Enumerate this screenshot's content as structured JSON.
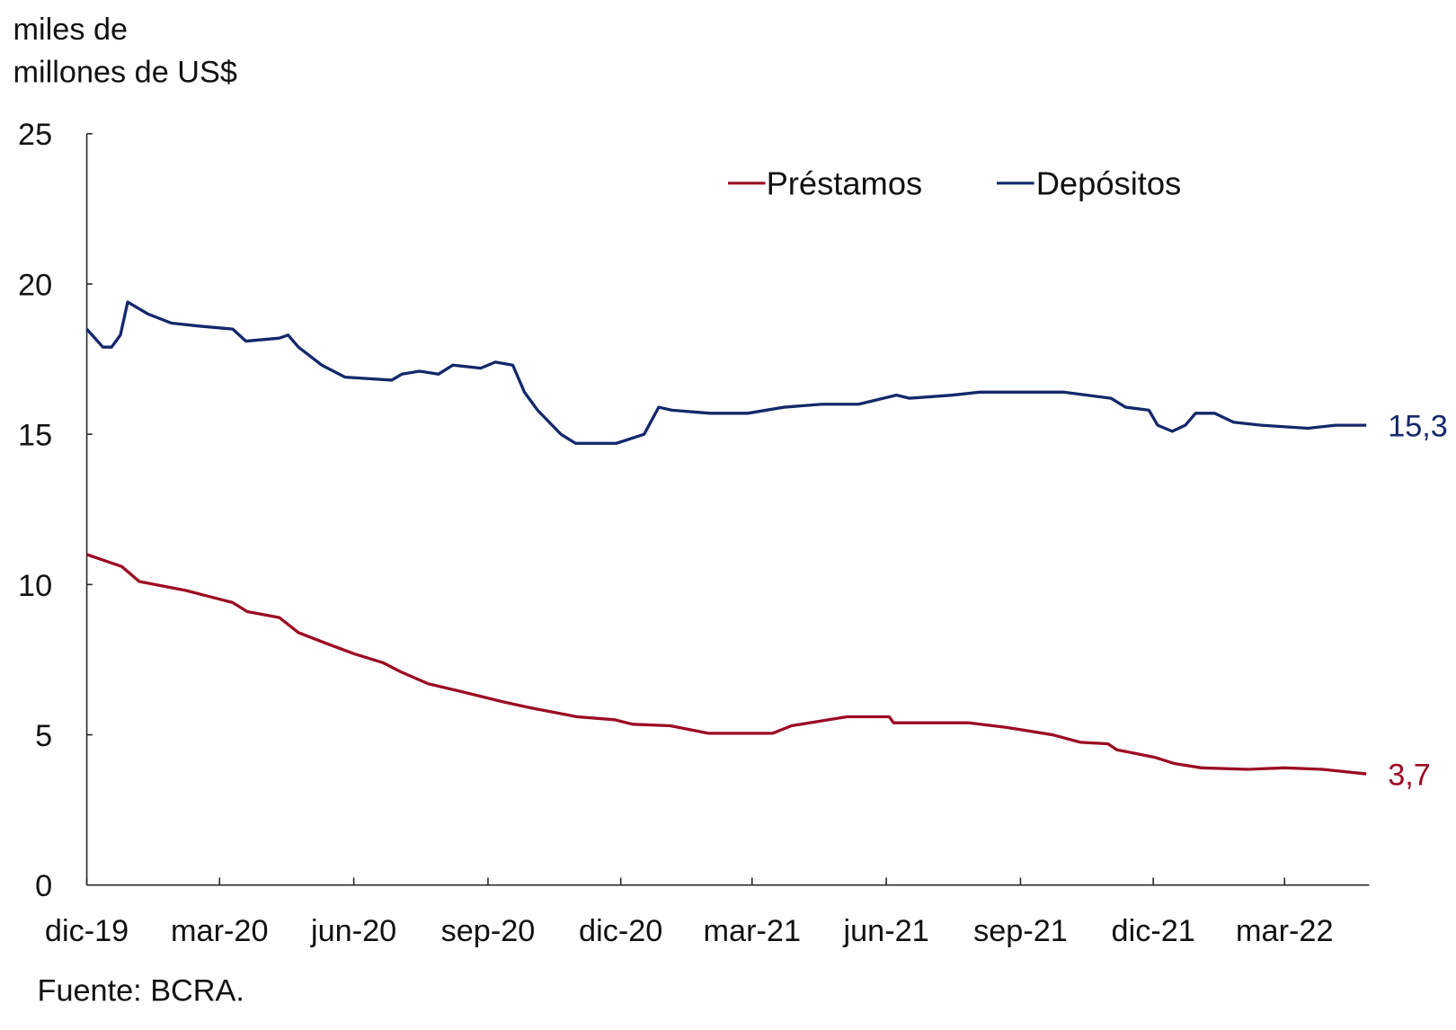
{
  "chart_data": {
    "type": "line",
    "ylabel": "miles de millones de US$",
    "ylabel_lines": [
      "miles de",
      "millones de US$"
    ],
    "source": "Fuente: BCRA.",
    "ylim": [
      0,
      25
    ],
    "yticks": [
      "0",
      "5",
      "10",
      "15",
      "20",
      "25"
    ],
    "xlim": [
      "2019-12-01",
      "2022-04-28"
    ],
    "xticks": [
      {
        "date": "2019-12-01",
        "label": "dic-19"
      },
      {
        "date": "2020-03-01",
        "label": "mar-20"
      },
      {
        "date": "2020-06-01",
        "label": "jun-20"
      },
      {
        "date": "2020-09-01",
        "label": "sep-20"
      },
      {
        "date": "2020-12-01",
        "label": "dic-20"
      },
      {
        "date": "2021-03-01",
        "label": "mar-21"
      },
      {
        "date": "2021-06-01",
        "label": "jun-21"
      },
      {
        "date": "2021-09-01",
        "label": "sep-21"
      },
      {
        "date": "2021-12-01",
        "label": "dic-21"
      },
      {
        "date": "2022-03-01",
        "label": "mar-22"
      }
    ],
    "grid": false,
    "legend": "top",
    "series": [
      {
        "name": "Préstamos",
        "color": "#9b0b22",
        "end_label": "3,7",
        "points": [
          [
            "2019-12-01",
            11.0
          ],
          [
            "2019-12-25",
            10.6
          ],
          [
            "2020-01-06",
            10.1
          ],
          [
            "2020-02-07",
            9.8
          ],
          [
            "2020-03-10",
            9.4
          ],
          [
            "2020-03-20",
            9.1
          ],
          [
            "2020-04-11",
            8.9
          ],
          [
            "2020-04-24",
            8.4
          ],
          [
            "2020-05-10",
            8.1
          ],
          [
            "2020-06-01",
            7.7
          ],
          [
            "2020-06-21",
            7.4
          ],
          [
            "2020-07-03",
            7.1
          ],
          [
            "2020-07-22",
            6.7
          ],
          [
            "2020-08-17",
            6.4
          ],
          [
            "2020-09-11",
            6.1
          ],
          [
            "2020-09-30",
            5.9
          ],
          [
            "2020-11-01",
            5.6
          ],
          [
            "2020-11-27",
            5.5
          ],
          [
            "2020-12-09",
            5.35
          ],
          [
            "2021-01-04",
            5.3
          ],
          [
            "2021-01-30",
            5.05
          ],
          [
            "2021-02-24",
            5.05
          ],
          [
            "2021-03-15",
            5.05
          ],
          [
            "2021-03-28",
            5.3
          ],
          [
            "2021-04-16",
            5.45
          ],
          [
            "2021-05-05",
            5.6
          ],
          [
            "2021-06-03",
            5.6
          ],
          [
            "2021-06-06",
            5.4
          ],
          [
            "2021-07-02",
            5.4
          ],
          [
            "2021-07-27",
            5.4
          ],
          [
            "2021-08-22",
            5.25
          ],
          [
            "2021-09-23",
            5.0
          ],
          [
            "2021-10-12",
            4.75
          ],
          [
            "2021-10-31",
            4.7
          ],
          [
            "2021-11-06",
            4.5
          ],
          [
            "2021-12-02",
            4.25
          ],
          [
            "2021-12-15",
            4.05
          ],
          [
            "2022-01-03",
            3.9
          ],
          [
            "2022-02-04",
            3.85
          ],
          [
            "2022-03-01",
            3.9
          ],
          [
            "2022-03-27",
            3.85
          ],
          [
            "2022-04-26",
            3.7
          ]
        ]
      },
      {
        "name": "Depósitos",
        "color": "#14286b",
        "end_label": "15,3",
        "points": [
          [
            "2019-12-01",
            18.5
          ],
          [
            "2019-12-12",
            17.9
          ],
          [
            "2019-12-18",
            17.9
          ],
          [
            "2019-12-24",
            18.3
          ],
          [
            "2019-12-29",
            19.4
          ],
          [
            "2020-01-12",
            19.0
          ],
          [
            "2020-01-28",
            18.7
          ],
          [
            "2020-02-16",
            18.6
          ],
          [
            "2020-03-10",
            18.5
          ],
          [
            "2020-03-19",
            18.1
          ],
          [
            "2020-04-11",
            18.2
          ],
          [
            "2020-04-17",
            18.3
          ],
          [
            "2020-04-24",
            17.9
          ],
          [
            "2020-05-10",
            17.3
          ],
          [
            "2020-05-26",
            16.9
          ],
          [
            "2020-06-27",
            16.8
          ],
          [
            "2020-07-04",
            17.0
          ],
          [
            "2020-07-16",
            17.1
          ],
          [
            "2020-07-29",
            17.0
          ],
          [
            "2020-08-08",
            17.3
          ],
          [
            "2020-08-27",
            17.2
          ],
          [
            "2020-09-06",
            17.4
          ],
          [
            "2020-09-18",
            17.3
          ],
          [
            "2020-09-26",
            16.4
          ],
          [
            "2020-10-05",
            15.8
          ],
          [
            "2020-10-21",
            15.0
          ],
          [
            "2020-10-31",
            14.7
          ],
          [
            "2020-11-28",
            14.7
          ],
          [
            "2020-12-17",
            15.0
          ],
          [
            "2020-12-27",
            15.9
          ],
          [
            "2021-01-05",
            15.8
          ],
          [
            "2021-01-31",
            15.7
          ],
          [
            "2021-02-26",
            15.7
          ],
          [
            "2021-03-23",
            15.9
          ],
          [
            "2021-04-18",
            16.0
          ],
          [
            "2021-05-13",
            16.0
          ],
          [
            "2021-06-08",
            16.3
          ],
          [
            "2021-06-17",
            16.2
          ],
          [
            "2021-07-16",
            16.3
          ],
          [
            "2021-08-04",
            16.4
          ],
          [
            "2021-08-30",
            16.4
          ],
          [
            "2021-10-01",
            16.4
          ],
          [
            "2021-11-02",
            16.2
          ],
          [
            "2021-11-12",
            15.9
          ],
          [
            "2021-11-28",
            15.8
          ],
          [
            "2021-12-04",
            15.3
          ],
          [
            "2021-12-14",
            15.1
          ],
          [
            "2021-12-23",
            15.3
          ],
          [
            "2021-12-30",
            15.7
          ],
          [
            "2022-01-12",
            15.7
          ],
          [
            "2022-01-25",
            15.4
          ],
          [
            "2022-02-13",
            15.3
          ],
          [
            "2022-03-17",
            15.2
          ],
          [
            "2022-04-05",
            15.3
          ],
          [
            "2022-04-26",
            15.3
          ]
        ]
      }
    ]
  }
}
